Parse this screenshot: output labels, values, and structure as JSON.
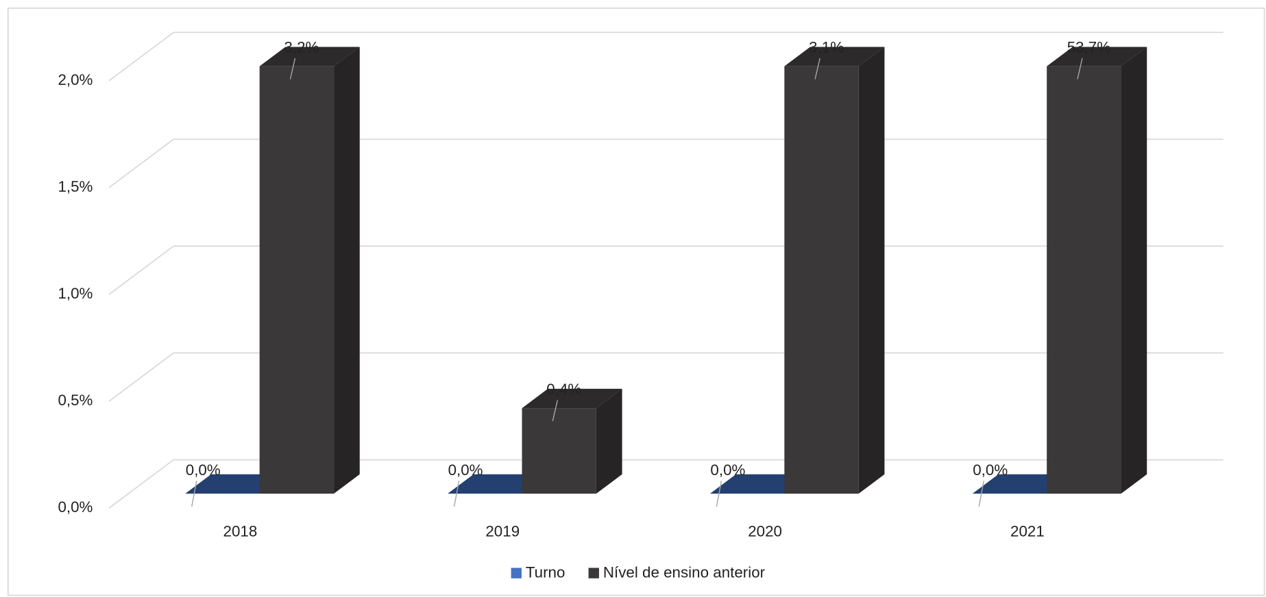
{
  "chart_data": {
    "type": "bar3d",
    "categories": [
      "2018",
      "2019",
      "2020",
      "2021"
    ],
    "series": [
      {
        "name": "Turno",
        "color": "#2f5597",
        "values": [
          0,
          0,
          0,
          0
        ],
        "value_labels": [
          "0,0%",
          "0,0%",
          "0,0%",
          "0,0%"
        ]
      },
      {
        "name": "Nível de ensino anterior",
        "color": "#3a3839",
        "values": [
          3.2,
          0.4,
          3.1,
          53.7
        ],
        "value_labels": [
          "3,2%",
          "0,4%",
          "3,1%",
          "53,7%"
        ]
      }
    ],
    "ylim": [
      0,
      2
    ],
    "yticks": [
      {
        "value": 0,
        "label": "0,0%"
      },
      {
        "value": 0.5,
        "label": "0,5%"
      },
      {
        "value": 1,
        "label": "1,0%"
      },
      {
        "value": 1.5,
        "label": "1,5%"
      },
      {
        "value": 2,
        "label": "2,0%"
      }
    ],
    "grid": true,
    "legend": "bottom"
  }
}
